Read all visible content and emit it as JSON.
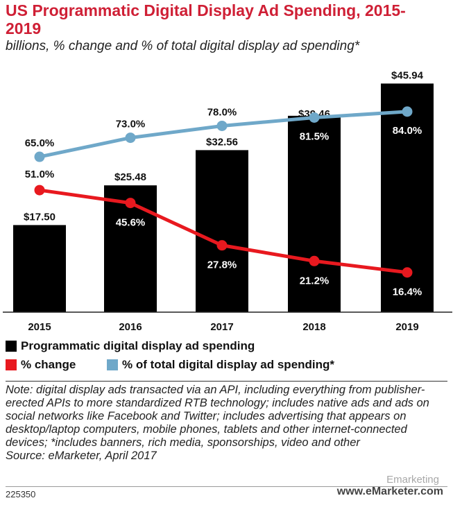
{
  "header": {
    "title": "US Programmatic Digital Display Ad Spending, 2015-2019",
    "subtitle": "billions, % change and % of total digital display ad spending*"
  },
  "chart_data": {
    "type": "bar",
    "categories": [
      "2015",
      "2016",
      "2017",
      "2018",
      "2019"
    ],
    "series": [
      {
        "name": "Programmatic digital display ad spending",
        "type": "bar",
        "values": [
          17.5,
          25.48,
          32.56,
          39.46,
          45.94
        ],
        "labels": [
          "$17.50",
          "$25.48",
          "$32.56",
          "$39.46",
          "$45.94"
        ],
        "color": "#000000"
      },
      {
        "name": "% change",
        "type": "line",
        "values": [
          51.0,
          45.6,
          27.8,
          21.2,
          16.4
        ],
        "labels": [
          "51.0%",
          "45.6%",
          "27.8%",
          "21.2%",
          "16.4%"
        ],
        "color": "#e8191f"
      },
      {
        "name": "% of total digital display ad spending*",
        "type": "line",
        "values": [
          65.0,
          73.0,
          78.0,
          81.5,
          84.0
        ],
        "labels": [
          "65.0%",
          "73.0%",
          "78.0%",
          "81.5%",
          "84.0%"
        ],
        "color": "#6fa8c9"
      }
    ],
    "bar_ylim": [
      0,
      46
    ],
    "line_ylim": [
      0,
      100
    ],
    "grid": false,
    "legend_position": "bottom"
  },
  "legend": {
    "bar_label": "Programmatic digital display ad spending",
    "change_label": "% change",
    "share_label": "% of total digital display ad spending*"
  },
  "note": "Note: digital display ads transacted via an API, including everything from publisher-erected APIs to more standardized RTB technology; includes native ads and ads on social networks like Facebook and Twitter; includes advertising that appears on desktop/laptop computers, mobile phones, tablets and other internet-connected devices; *includes banners, rich media, sponsorships, video and other",
  "source": "Source: eMarketer, April 2017",
  "footer": {
    "chart_id": "225350",
    "brand": "www.eMarketer.com",
    "watermark": "Emarketing"
  }
}
